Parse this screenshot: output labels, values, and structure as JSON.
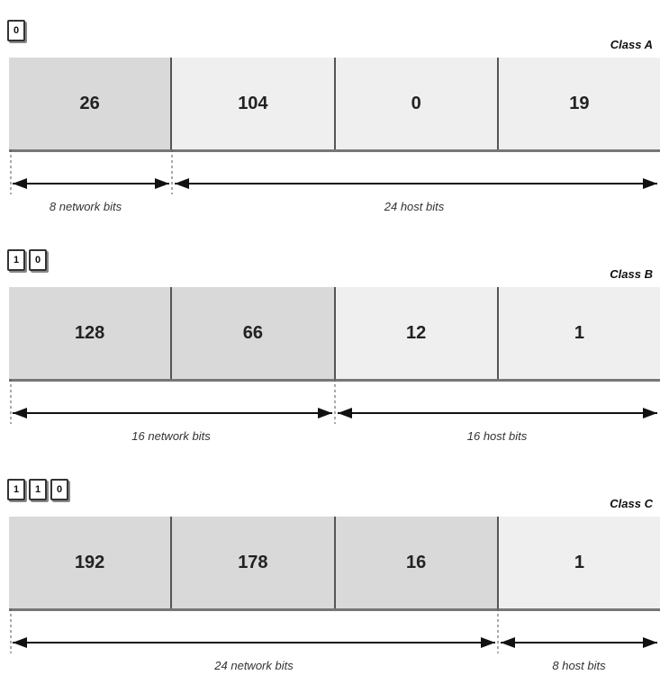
{
  "classes": [
    {
      "label": "Class A",
      "leading_bits": [
        "0"
      ],
      "octets": [
        "26",
        "104",
        "0",
        "19"
      ],
      "network_octets": 1,
      "network_label": "8 network bits",
      "host_label": "24 host bits"
    },
    {
      "label": "Class B",
      "leading_bits": [
        "1",
        "0"
      ],
      "octets": [
        "128",
        "66",
        "12",
        "1"
      ],
      "network_octets": 2,
      "network_label": "16 network bits",
      "host_label": "16 host bits"
    },
    {
      "label": "Class C",
      "leading_bits": [
        "1",
        "1",
        "0"
      ],
      "octets": [
        "192",
        "178",
        "16",
        "1"
      ],
      "network_octets": 3,
      "network_label": "24 network bits",
      "host_label": "8 host bits"
    }
  ]
}
